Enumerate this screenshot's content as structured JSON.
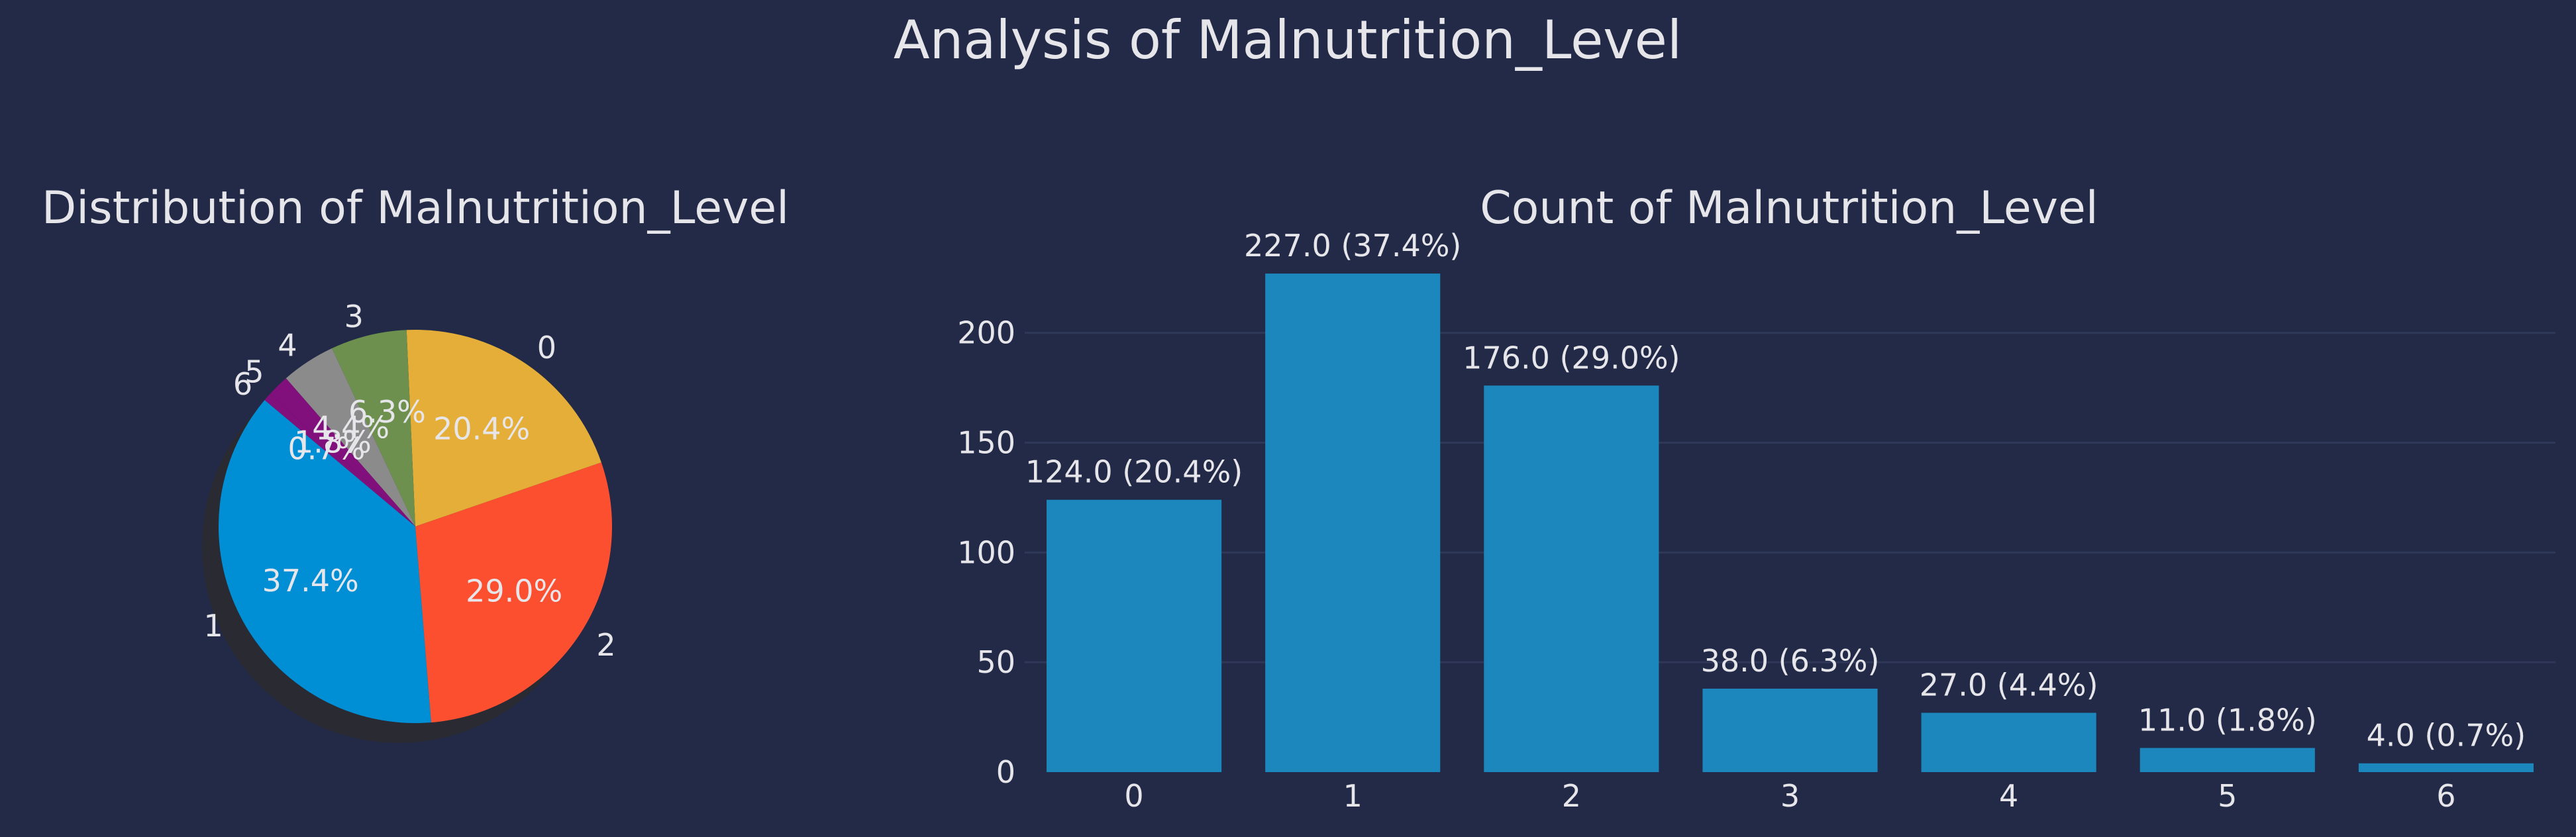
{
  "figure_title": "Analysis of Malnutrition_Level",
  "theme": {
    "background": "#222a47",
    "text": "#e6e6ea",
    "grid": "#2f3858",
    "bar_color": "#1b87bc",
    "shadow": "#2b2a30"
  },
  "chart_data": [
    {
      "type": "pie",
      "title": "Distribution of Malnutrition_Level",
      "start_angle_deg": 140,
      "direction": "counterclockwise",
      "shadow": true,
      "slices": [
        {
          "label": "1",
          "value": 227,
          "pct_label": "37.4%",
          "color": "#008fd5"
        },
        {
          "label": "2",
          "value": 176,
          "pct_label": "29.0%",
          "color": "#fc4f30"
        },
        {
          "label": "0",
          "value": 124,
          "pct_label": "20.4%",
          "color": "#e5ae38"
        },
        {
          "label": "3",
          "value": 38,
          "pct_label": "6.3%",
          "color": "#6d904f"
        },
        {
          "label": "4",
          "value": 27,
          "pct_label": "4.4%",
          "color": "#8b8b8b"
        },
        {
          "label": "5",
          "value": 11,
          "pct_label": "1.8%",
          "color": "#810f7c"
        },
        {
          "label": "6",
          "value": 4,
          "pct_label": "0.7%",
          "color": "#810f7c"
        }
      ]
    },
    {
      "type": "bar",
      "title": "Count of Malnutrition_Level",
      "categories": [
        "0",
        "1",
        "2",
        "3",
        "4",
        "5",
        "6"
      ],
      "values": [
        124,
        227,
        176,
        38,
        27,
        11,
        4
      ],
      "bar_labels": [
        "124.0 (20.4%)",
        "227.0 (37.4%)",
        "176.0 (29.0%)",
        "38.0 (6.3%)",
        "27.0 (4.4%)",
        "11.0 (1.8%)",
        "4.0 (0.7%)"
      ],
      "ylim": [
        0,
        240
      ],
      "yticks": [
        0,
        50,
        100,
        150,
        200
      ],
      "grid": true,
      "xlabel": "",
      "ylabel": ""
    }
  ]
}
